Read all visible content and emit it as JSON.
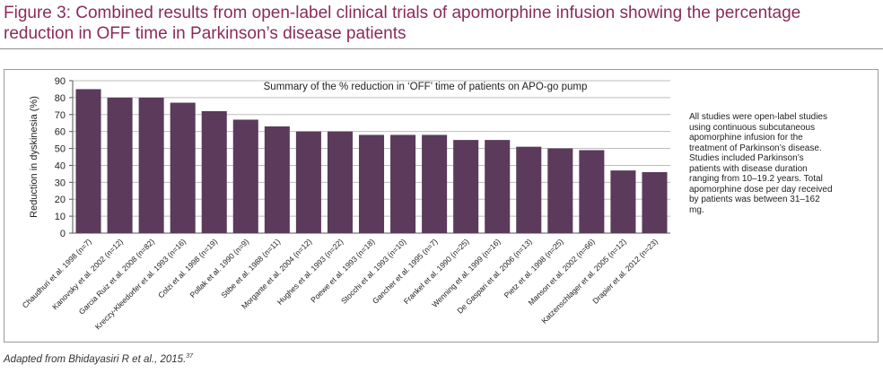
{
  "figure": {
    "title": "Figure 3: Combined results from open-label clinical trials of apomorphine infusion showing the percentage reduction in OFF time in Parkinson’s disease patients",
    "side_note": "All studies were open-label studies using continuous subcutaneous apomorphine infusion for the treatment of Parkinson’s disease. Studies included Parkinson’s patients with disease duration ranging from 10–19.2 years. Total apomorphine dose per day received by patients was between 31–162 mg.",
    "source": "Adapted from Bhidayasiri R et al., 2015.",
    "source_ref": "37"
  },
  "chart_data": {
    "type": "bar",
    "title": "Summary of the % reduction in ‘OFF’ time of patients on APO-go pump",
    "xlabel": "",
    "ylabel": "Reduction in dyskinesia (%)",
    "ylim": [
      0,
      90
    ],
    "yticks": [
      0,
      10,
      20,
      30,
      40,
      50,
      60,
      70,
      80,
      90
    ],
    "grid": true,
    "bar_color": "#5b3a5b",
    "categories": [
      "Chaudhuri et al. 1998 (n=7)",
      "Kanovsky et al. 2002 (n=12)",
      "Garcia Ruiz et al. 2008 (n=82)",
      "Kreczy-Kleedorfer et al. 1993 (n=16)",
      "Colzi et al. 1998 (n=19)",
      "Pollak et al. 1990 (n=9)",
      "Stibe et al. 1988 (n=11)",
      "Morgante et al. 2004 (n=12)",
      "Hughes et al. 1993 (n=22)",
      "Poewe et al. 1993 (n=18)",
      "Stocchi et al. 1993 (n=10)",
      "Gancher et al. 1995 (n=7)",
      "Frankel et al. 1990 (n=25)",
      "Wenning et al. 1999 (n=16)",
      "De Gaspari et al. 2006 (n=13)",
      "Pietz et al. 1998 (n=25)",
      "Manson et al. 2002 (n=66)",
      "Katzenschlager et al. 2005 (n=12)",
      "Drapier et al. 2012 (n=23)"
    ],
    "values": [
      85,
      80,
      80,
      77,
      72,
      67,
      63,
      60,
      60,
      58,
      58,
      58,
      55,
      55,
      51,
      50,
      49,
      37,
      36
    ]
  }
}
